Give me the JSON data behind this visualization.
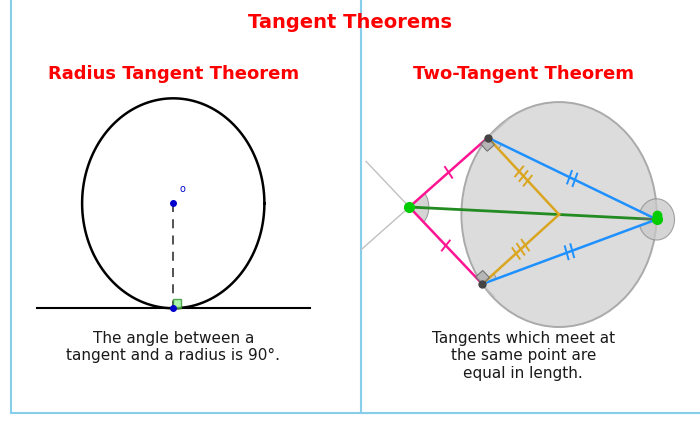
{
  "title": "Tangent Theorems",
  "title_color": "#FF0000",
  "title_fontsize": 14,
  "panel1_title": "Radius Tangent Theorem",
  "panel1_title_color": "#FF0000",
  "panel1_title_fontsize": 13,
  "panel1_text": "The angle between a\ntangent and a radius is 90°.",
  "panel2_title": "Two-Tangent Theorem",
  "panel2_title_color": "#FF0000",
  "panel2_title_fontsize": 13,
  "panel2_text": "Tangents which meet at\nthe same point are\nequal in length.",
  "bg_color": "#FFFFFF",
  "panel_border_color": "#87CEEB",
  "text_color": "#1a1a1a",
  "text_fontsize": 11
}
